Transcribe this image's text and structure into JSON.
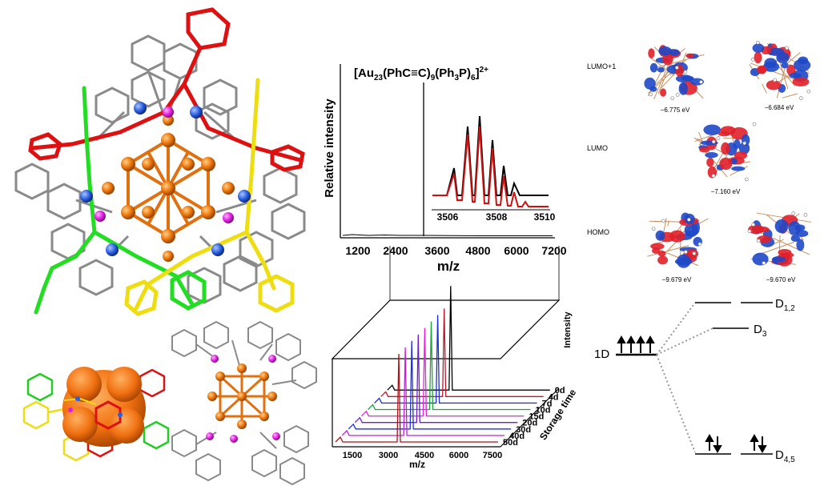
{
  "ms_panel": {
    "formula_base": "[Au",
    "formula_sub1": "23",
    "formula_mid1": "(PhC",
    "formula_triple": "≡",
    "formula_mid2": "C)",
    "formula_sub2": "9",
    "formula_mid3": "(Ph",
    "formula_sub3": "3",
    "formula_mid4": "P)",
    "formula_sub4": "6",
    "formula_end": "]",
    "formula_charge": "2+",
    "ylabel": "Relative intensity",
    "xlabel": "m/z",
    "xticks": [
      "1200",
      "2400",
      "3600",
      "4800",
      "6000",
      "7200"
    ],
    "inset_xticks": [
      "3506",
      "3508",
      "3510"
    ]
  },
  "stability_panel": {
    "ylabel": "Intensity",
    "xlabel": "m/z",
    "depth_label": "Storage time",
    "xticks": [
      "1500",
      "3000",
      "4500",
      "6000",
      "7500"
    ],
    "days": [
      "0d",
      "4d",
      "7d",
      "10d",
      "15d",
      "20d",
      "30d",
      "40d",
      "50d"
    ],
    "colors": [
      "#000000",
      "#c0182a",
      "#1a2fd0",
      "#17a63a",
      "#e81ee0",
      "#6e1fd0",
      "#1f2ee8",
      "#c51de0",
      "#b01218"
    ]
  },
  "orbital_panel": {
    "rows": [
      {
        "label": "LUMO+1",
        "energies": [
          "−6.775 eV",
          "−6.684 eV"
        ]
      },
      {
        "label": "LUMO",
        "energies": [
          "−7.160 eV"
        ]
      },
      {
        "label": "HOMO",
        "energies": [
          "−9.679 eV",
          "−9.670 eV"
        ]
      }
    ]
  },
  "energy_diagram": {
    "left_label": "1D",
    "levels": [
      {
        "label_main": "D",
        "label_sub": "1,2"
      },
      {
        "label_main": "D",
        "label_sub": "3"
      },
      {
        "label_main": "D",
        "label_sub": "4,5"
      }
    ]
  }
}
